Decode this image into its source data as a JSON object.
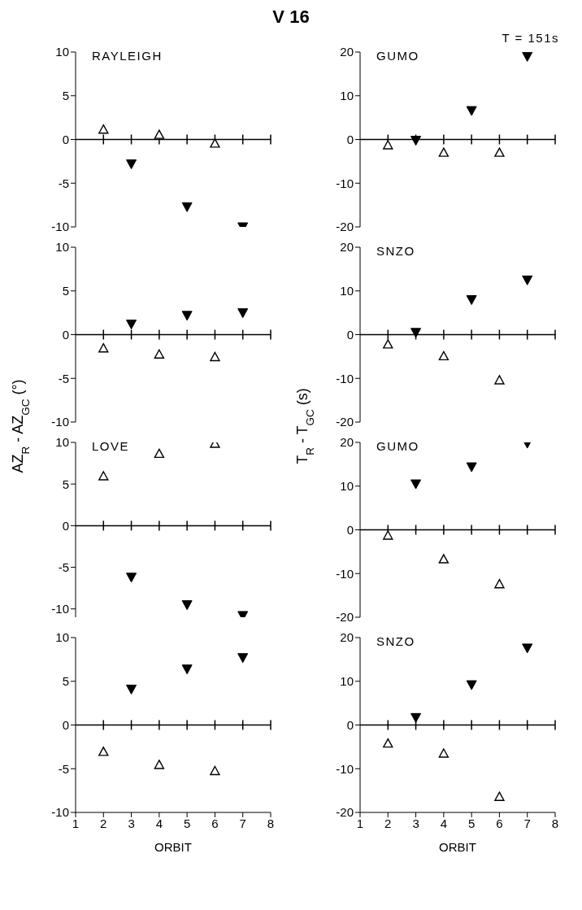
{
  "chart_data": [
    {
      "type": "scatter",
      "title": "V 16",
      "annotations": [
        "RAYLEIGH"
      ],
      "xlim": [
        1,
        8
      ],
      "xticks": [
        1,
        2,
        3,
        4,
        5,
        6,
        7,
        8
      ],
      "ylim": [
        -10,
        10
      ],
      "yticks": [
        -10,
        -5,
        0,
        5,
        10
      ],
      "tick_labels": "y",
      "ref_lines": [
        {
          "axis": "y",
          "value": 0
        }
      ],
      "series": [
        {
          "x": [
            2,
            4,
            6
          ],
          "values": [
            1.1,
            0.5,
            -0.5
          ],
          "color": "#000000",
          "marker": "triangle"
        },
        {
          "x": [
            3,
            5,
            7
          ],
          "values": [
            -2.8,
            -7.7,
            -10
          ],
          "color": "#000000",
          "marker": "triangle-down"
        }
      ]
    },
    {
      "type": "scatter",
      "annotations": [
        "GUMO",
        "T = 151s"
      ],
      "xlim": [
        1,
        8
      ],
      "xticks": [
        1,
        2,
        3,
        4,
        5,
        6,
        7,
        8
      ],
      "ylim": [
        -20,
        20
      ],
      "yticks": [
        -20,
        -10,
        0,
        10,
        20
      ],
      "tick_labels": "y",
      "ref_lines": [
        {
          "axis": "y",
          "value": 0
        }
      ],
      "series": [
        {
          "x": [
            2,
            4,
            6
          ],
          "values": [
            -1.4,
            -3.1,
            -3.1
          ],
          "color": "#000000",
          "marker": "triangle"
        },
        {
          "x": [
            3,
            5,
            7
          ],
          "values": [
            -0.2,
            6.6,
            19
          ],
          "color": "#000000",
          "marker": "triangle-down"
        }
      ]
    },
    {
      "type": "scatter",
      "ylabel": "AZ$_{R}$ - AZ$_{GC}$ (°)",
      "xlim": [
        1,
        8
      ],
      "xticks": [
        1,
        2,
        3,
        4,
        5,
        6,
        7,
        8
      ],
      "ylim": [
        -10,
        10
      ],
      "yticks": [
        -10,
        -5,
        0,
        5,
        10
      ],
      "tick_labels": "y",
      "ref_lines": [
        {
          "axis": "y",
          "value": 0
        }
      ],
      "series": [
        {
          "x": [
            2,
            4,
            6
          ],
          "values": [
            -1.6,
            -2.3,
            -2.6
          ],
          "color": "#000000",
          "marker": "triangle"
        },
        {
          "x": [
            3,
            5,
            7
          ],
          "values": [
            1.2,
            2.2,
            2.5
          ],
          "color": "#000000",
          "marker": "triangle-down"
        }
      ]
    },
    {
      "type": "scatter",
      "ylabel": "T$_{R}$ - T$_{GC}$ (s)",
      "annotations": [
        "SNZO"
      ],
      "xlim": [
        1,
        8
      ],
      "xticks": [
        1,
        2,
        3,
        4,
        5,
        6,
        7,
        8
      ],
      "ylim": [
        -20,
        20
      ],
      "yticks": [
        -20,
        -10,
        0,
        10,
        20
      ],
      "tick_labels": "y",
      "ref_lines": [
        {
          "axis": "y",
          "value": 0
        }
      ],
      "series": [
        {
          "x": [
            2,
            4,
            6
          ],
          "values": [
            -2.3,
            -5,
            -10.5
          ],
          "color": "#000000",
          "marker": "triangle"
        },
        {
          "x": [
            3,
            5,
            7
          ],
          "values": [
            0.5,
            8,
            12.5
          ],
          "color": "#000000",
          "marker": "triangle-down"
        }
      ]
    },
    {
      "type": "scatter",
      "annotations": [
        "LOVE"
      ],
      "xlim": [
        1,
        8
      ],
      "xticks": [
        1,
        2,
        3,
        4,
        5,
        6,
        7,
        8
      ],
      "ylim": [
        -11,
        10
      ],
      "yticks": [
        -10,
        -5,
        0,
        5,
        10
      ],
      "tick_labels": "y",
      "ref_lines": [
        {
          "axis": "y",
          "value": 0
        }
      ],
      "series": [
        {
          "x": [
            2,
            4,
            6
          ],
          "values": [
            5.9,
            8.6,
            9.8
          ],
          "color": "#000000",
          "marker": "triangle"
        },
        {
          "x": [
            3,
            5,
            7
          ],
          "values": [
            -6.2,
            -9.5,
            -10.8
          ],
          "color": "#000000",
          "marker": "triangle-down"
        }
      ]
    },
    {
      "type": "scatter",
      "annotations": [
        "GUMO"
      ],
      "xlim": [
        1,
        8
      ],
      "xticks": [
        1,
        2,
        3,
        4,
        5,
        6,
        7,
        8
      ],
      "ylim": [
        -20,
        20
      ],
      "yticks": [
        -20,
        -10,
        0,
        10,
        20
      ],
      "tick_labels": "y",
      "ref_lines": [
        {
          "axis": "y",
          "value": 0
        }
      ],
      "series": [
        {
          "x": [
            2,
            4,
            6
          ],
          "values": [
            -1.4,
            -6.8,
            -12.5
          ],
          "color": "#000000",
          "marker": "triangle"
        },
        {
          "x": [
            3,
            5,
            7
          ],
          "values": [
            10.5,
            14.4,
            19.8
          ],
          "color": "#000000",
          "marker": "triangle-down"
        }
      ]
    },
    {
      "type": "scatter",
      "xlabel": "ORBIT",
      "xlim": [
        1,
        8
      ],
      "xticks": [
        1,
        2,
        3,
        4,
        5,
        6,
        7,
        8
      ],
      "ylim": [
        -10,
        10
      ],
      "yticks": [
        -10,
        -5,
        0,
        5,
        10
      ],
      "ref_lines": [
        {
          "axis": "y",
          "value": 0
        }
      ],
      "series": [
        {
          "x": [
            2,
            4,
            6
          ],
          "values": [
            -3.1,
            -4.6,
            -5.3
          ],
          "color": "#000000",
          "marker": "triangle"
        },
        {
          "x": [
            3,
            5,
            7
          ],
          "values": [
            4.1,
            6.4,
            7.7
          ],
          "color": "#000000",
          "marker": "triangle-down"
        }
      ]
    },
    {
      "type": "scatter",
      "xlabel": "ORBIT",
      "annotations": [
        "SNZO"
      ],
      "xlim": [
        1,
        8
      ],
      "xticks": [
        1,
        2,
        3,
        4,
        5,
        6,
        7,
        8
      ],
      "ylim": [
        -20,
        20
      ],
      "yticks": [
        -20,
        -10,
        0,
        10,
        20
      ],
      "ref_lines": [
        {
          "axis": "y",
          "value": 0
        }
      ],
      "series": [
        {
          "x": [
            2,
            4,
            6
          ],
          "values": [
            -4.3,
            -6.6,
            -16.5
          ],
          "color": "#000000",
          "marker": "triangle"
        },
        {
          "x": [
            3,
            5,
            7
          ],
          "values": [
            1.7,
            9.2,
            17.6
          ],
          "color": "#000000",
          "marker": "triangle-down"
        }
      ]
    }
  ]
}
